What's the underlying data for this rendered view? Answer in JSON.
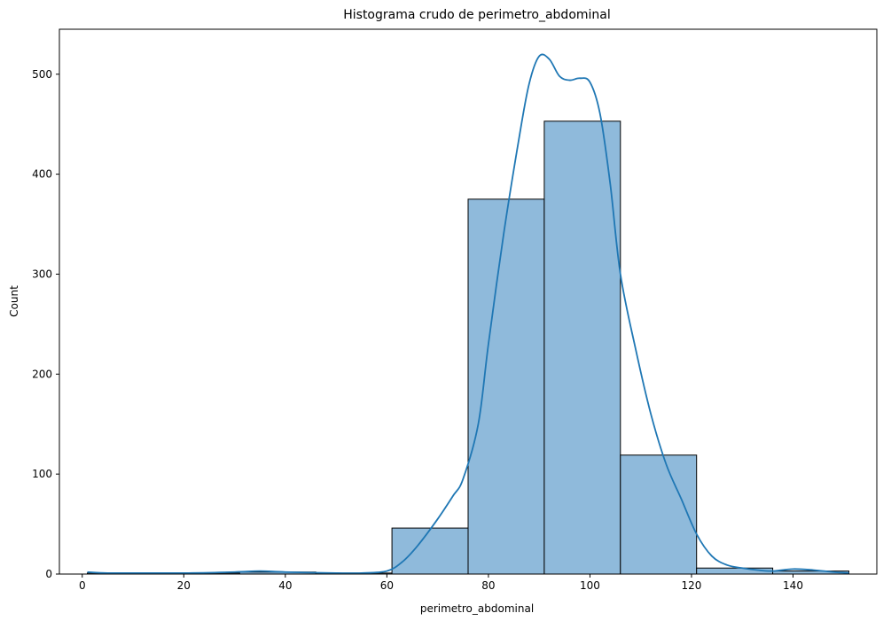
{
  "chart_data": {
    "type": "bar",
    "title": "Histograma crudo de perimetro_abdominal",
    "xlabel": "perimetro_abdominal",
    "ylabel": "Count",
    "xlim": [
      -4.5,
      156.5
    ],
    "ylim": [
      0,
      545
    ],
    "xticks": [
      0,
      20,
      40,
      60,
      80,
      100,
      120,
      140
    ],
    "yticks": [
      0,
      100,
      200,
      300,
      400,
      500
    ],
    "bins": [
      {
        "start": 1,
        "end": 16,
        "count": 1
      },
      {
        "start": 16,
        "end": 31,
        "count": 1
      },
      {
        "start": 31,
        "end": 46,
        "count": 2
      },
      {
        "start": 46,
        "end": 61,
        "count": 1
      },
      {
        "start": 61,
        "end": 76,
        "count": 46
      },
      {
        "start": 76,
        "end": 91,
        "count": 375
      },
      {
        "start": 91,
        "end": 106,
        "count": 453
      },
      {
        "start": 106,
        "end": 121,
        "count": 119
      },
      {
        "start": 121,
        "end": 136,
        "count": 6
      },
      {
        "start": 136,
        "end": 151,
        "count": 3
      }
    ],
    "kde": {
      "x": [
        1,
        5,
        10,
        20,
        30,
        35,
        40,
        50,
        55,
        60,
        63,
        66,
        70,
        73,
        75,
        78,
        80,
        83,
        86,
        88,
        90,
        92,
        94,
        96,
        98,
        100,
        102,
        104,
        106,
        109,
        112,
        115,
        118,
        121,
        124,
        127,
        130,
        133,
        136,
        140,
        144,
        148,
        151
      ],
      "y": [
        2,
        1,
        1,
        1,
        2,
        3,
        2,
        1,
        1,
        3,
        12,
        28,
        55,
        78,
        95,
        150,
        230,
        340,
        435,
        490,
        518,
        515,
        498,
        494,
        496,
        492,
        460,
        390,
        300,
        225,
        160,
        110,
        75,
        40,
        18,
        9,
        6,
        4,
        3,
        5,
        4,
        2,
        1
      ]
    },
    "colors": {
      "bar_fill": "#8fbadb",
      "bar_edge": "#000000",
      "kde_line": "#1f77b4"
    },
    "grid": false,
    "legend": "none"
  }
}
